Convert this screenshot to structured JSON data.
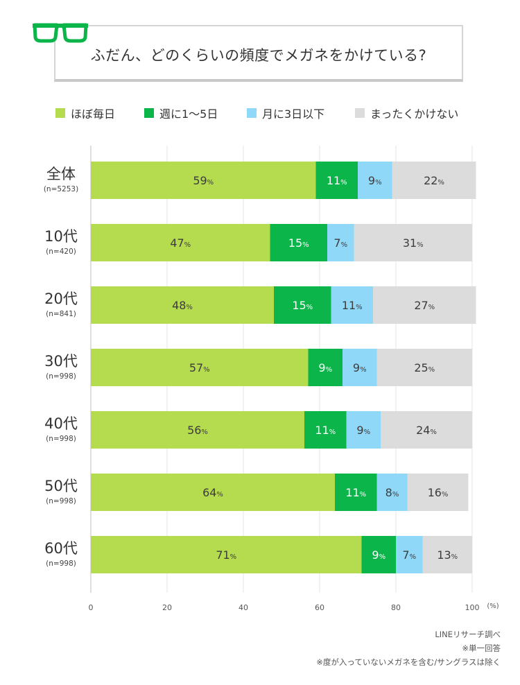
{
  "title": "ふだん、どのくらいの頻度でメガネをかけている?",
  "chart_data": {
    "type": "bar",
    "orientation": "horizontal",
    "stacked": true,
    "categories": [
      "全体",
      "10代",
      "20代",
      "30代",
      "40代",
      "50代",
      "60代"
    ],
    "sample_sizes": [
      "(n=5253)",
      "(n=420)",
      "(n=841)",
      "(n=998)",
      "(n=998)",
      "(n=998)",
      "(n=998)"
    ],
    "series": [
      {
        "name": "ほぼ毎日",
        "color": "#b5db4e",
        "text_color": "#3c3c3c",
        "values": [
          59,
          47,
          48,
          57,
          56,
          64,
          71
        ]
      },
      {
        "name": "週に1〜5日",
        "color": "#0bb54a",
        "text_color": "#ffffff",
        "values": [
          11,
          15,
          15,
          9,
          11,
          11,
          9
        ]
      },
      {
        "name": "月に3日以下",
        "color": "#8fd8f8",
        "text_color": "#3c3c3c",
        "values": [
          9,
          7,
          11,
          9,
          9,
          8,
          7
        ]
      },
      {
        "name": "まったくかけない",
        "color": "#dcdcdc",
        "text_color": "#3c3c3c",
        "values": [
          22,
          31,
          27,
          25,
          24,
          16,
          13
        ]
      }
    ],
    "x_ticks": [
      "0",
      "20",
      "40",
      "60",
      "80",
      "100"
    ],
    "x_unit": "(%)",
    "xlim": [
      0,
      100
    ],
    "value_suffix": "%",
    "grid": true,
    "legend": "top"
  },
  "notes": [
    "LINEリサーチ調べ",
    "※単一回答",
    "※度が入っていないメガネを含む/サングラスは除く"
  ],
  "glasses_icon": "glasses-icon",
  "accent_color": "#0bb54a"
}
